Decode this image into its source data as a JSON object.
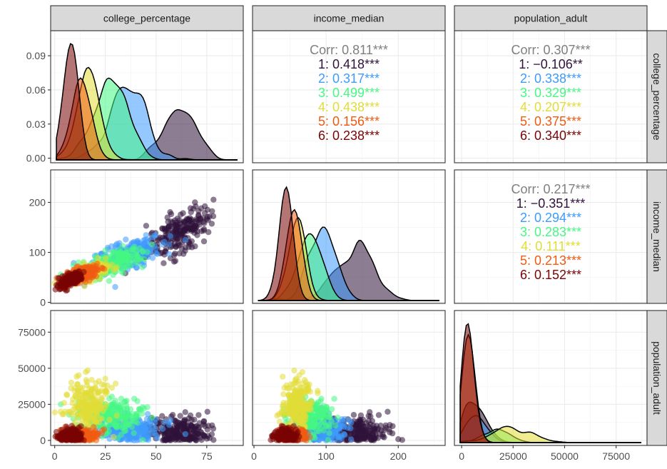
{
  "chart_data": {
    "type": "scatter",
    "title": "",
    "variables": [
      "college_percentage",
      "income_median",
      "population_adult"
    ],
    "strip_labels": [
      "college_percentage",
      "income_median",
      "population_adult"
    ],
    "groups": [
      {
        "name": "1",
        "color": "#30123B"
      },
      {
        "name": "2",
        "color": "#3E9BFE"
      },
      {
        "name": "3",
        "color": "#46F884"
      },
      {
        "name": "4",
        "color": "#E1DD37"
      },
      {
        "name": "5",
        "color": "#F05B12"
      },
      {
        "name": "6",
        "color": "#7A0403"
      }
    ],
    "axes": {
      "college_percentage": {
        "range": [
          -2,
          93
        ],
        "ticks": [
          0,
          25,
          50,
          75
        ],
        "tick_labels": [
          "0",
          "25",
          "50",
          "75"
        ]
      },
      "income_median": {
        "range": [
          -2,
          265
        ],
        "ticks": [
          0,
          100,
          200
        ],
        "tick_labels": [
          "0",
          "100",
          "200"
        ]
      },
      "population_adult": {
        "range": [
          -3500,
          90000
        ],
        "ticks": [
          0,
          25000,
          50000,
          75000
        ],
        "tick_labels": [
          "0",
          "25000",
          "50000",
          "75000"
        ]
      }
    },
    "density_axis": {
      "range": [
        -0.004,
        0.112
      ],
      "ticks": [
        0.0,
        0.03,
        0.06,
        0.09
      ],
      "tick_labels": [
        "0.00",
        "0.03",
        "0.06",
        "0.09"
      ]
    },
    "correlations": [
      {
        "pair": [
          "college_percentage",
          "income_median"
        ],
        "overall": "Corr: 0.811***",
        "by_group": [
          "1: 0.418***",
          "2: 0.317***",
          "3: 0.499***",
          "4: 0.438***",
          "5: 0.156***",
          "6: 0.238***"
        ]
      },
      {
        "pair": [
          "college_percentage",
          "population_adult"
        ],
        "overall": "Corr: 0.307***",
        "by_group": [
          "1: −0.106**",
          "2: 0.338***",
          "3: 0.329***",
          "4: 0.207***",
          "5: 0.375***",
          "6: 0.340***"
        ]
      },
      {
        "pair": [
          "income_median",
          "population_adult"
        ],
        "overall": "Corr: 0.217***",
        "by_group": [
          "1: −0.351***",
          "2: 0.294***",
          "3: 0.283***",
          "4: 0.111***",
          "5: 0.213***",
          "6: 0.152***"
        ]
      }
    ],
    "group_centers": {
      "college_percentage": [
        62,
        35,
        27,
        17,
        13,
        8
      ],
      "income_median": [
        140,
        95,
        78,
        60,
        55,
        45
      ],
      "population_adult": [
        6000,
        7000,
        16000,
        24000,
        3000,
        3000
      ]
    },
    "grid": true
  }
}
